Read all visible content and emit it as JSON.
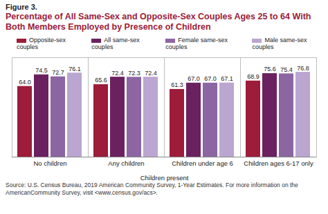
{
  "chart_data": {
    "type": "bar",
    "subtitle": "Figure 3.",
    "title": "Percentage of All Same-Sex and Opposite-Sex Couples Ages 25 to 64 With Both Members Employed by Presence of Children",
    "x_label": "Children present",
    "caption": "Source: U.S. Census Bureau, 2019 American Community Survey, 1-Year Estimates. For more information on the AmericanCommunity Survey, visit <www.census.gov/acs>.",
    "categories": [
      "No children",
      "Any children",
      "Children under age 6",
      "Children ages 6-17 only"
    ],
    "series": [
      {
        "name": "Opposite-sex couples",
        "color": "#9c1c39",
        "values": [
          64.0,
          65.6,
          61.3,
          68.9
        ],
        "value_labels": [
          "64.0",
          "65.6",
          "61.3",
          "68.9"
        ]
      },
      {
        "name": "All same-sex couples",
        "color": "#6b2160",
        "values": [
          74.5,
          72.4,
          67.0,
          75.6
        ],
        "value_labels": [
          "74.5",
          "72.4",
          "67.0",
          "75.6"
        ]
      },
      {
        "name": "Female same-sex couples",
        "color": "#8c65a3",
        "values": [
          72.7,
          72.3,
          67.0,
          75.4
        ],
        "value_labels": [
          "72.7",
          "72.3",
          "67.0",
          "75.4"
        ]
      },
      {
        "name": "Male same-sex couples",
        "color": "#baa6d0",
        "values": [
          76.1,
          72.4,
          67.1,
          76.8
        ],
        "value_labels": [
          "76.1",
          "72.4",
          "67.1",
          "76.8"
        ]
      }
    ],
    "ylim": [
      0,
      90
    ],
    "yticks": [],
    "grid": false,
    "legend": "top",
    "data_labels": true,
    "tick_labels": "x"
  }
}
